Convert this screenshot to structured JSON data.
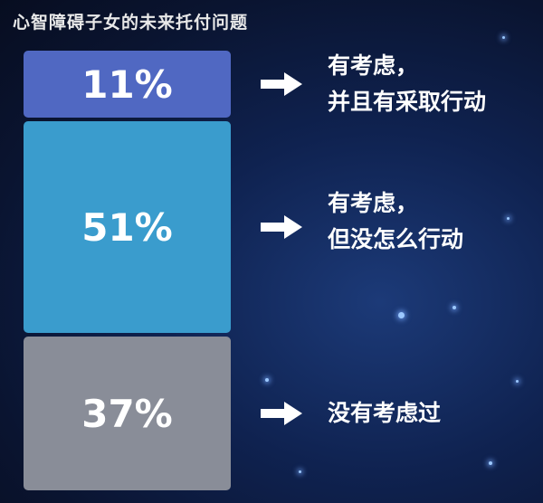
{
  "chart_data": {
    "type": "bar",
    "title": "心智障碍子女的未来托付问题",
    "categories": [
      "有考虑，并且有采取行动",
      "有考虑，但没怎么行动",
      "没有考虑过"
    ],
    "values": [
      11,
      51,
      37
    ],
    "value_labels": [
      "11%",
      "51%",
      "37%"
    ],
    "category_lines": [
      [
        "有考虑，",
        "并且有采取行动"
      ],
      [
        "有考虑，",
        "但没怎么行动"
      ],
      [
        "没有考虑过"
      ]
    ],
    "colors": [
      "#5068c2",
      "#3a9ccd",
      "#898d98"
    ],
    "orientation": "stacked-vertical"
  }
}
